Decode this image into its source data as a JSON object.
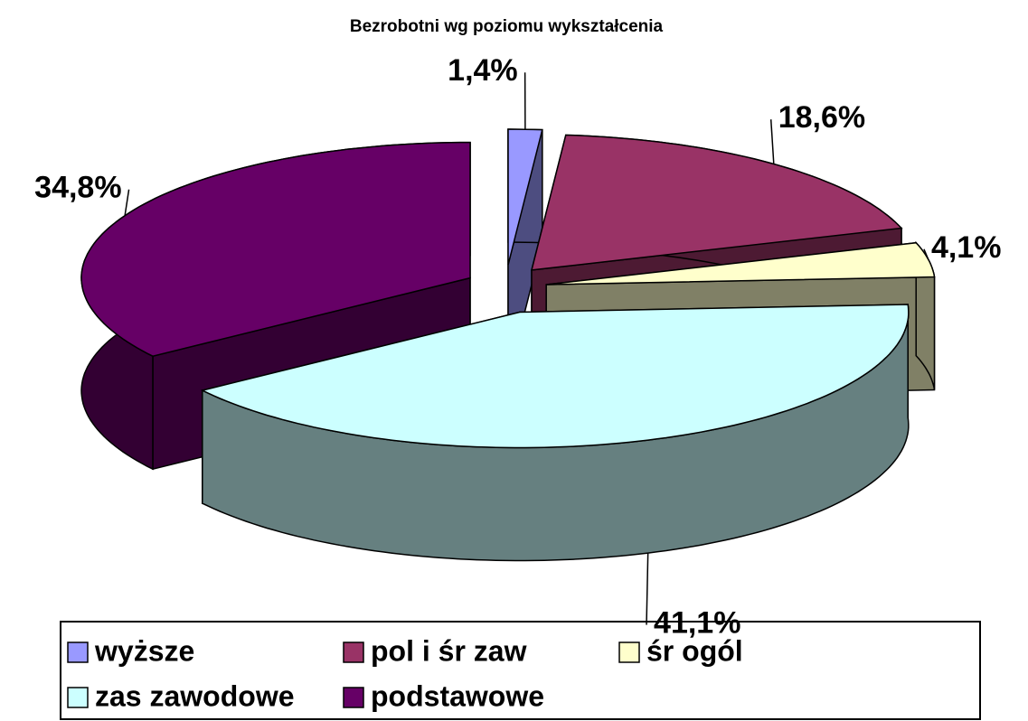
{
  "chart_data": {
    "type": "pie",
    "title": "Bezrobotni wg poziomu wykształcenia",
    "categories": [
      "wyższe",
      "pol i śr zaw",
      "śr ogól",
      "zas zawodowe",
      "podstawowe"
    ],
    "values": [
      1.4,
      18.6,
      4.1,
      41.1,
      34.8
    ],
    "value_labels": [
      "1,4%",
      "18,6%",
      "4,1%",
      "41,1%",
      "34,8%"
    ],
    "colors": [
      "#9999ff",
      "#993366",
      "#ffffcc",
      "#ccffff",
      "#660066"
    ],
    "legend": "bottom"
  }
}
